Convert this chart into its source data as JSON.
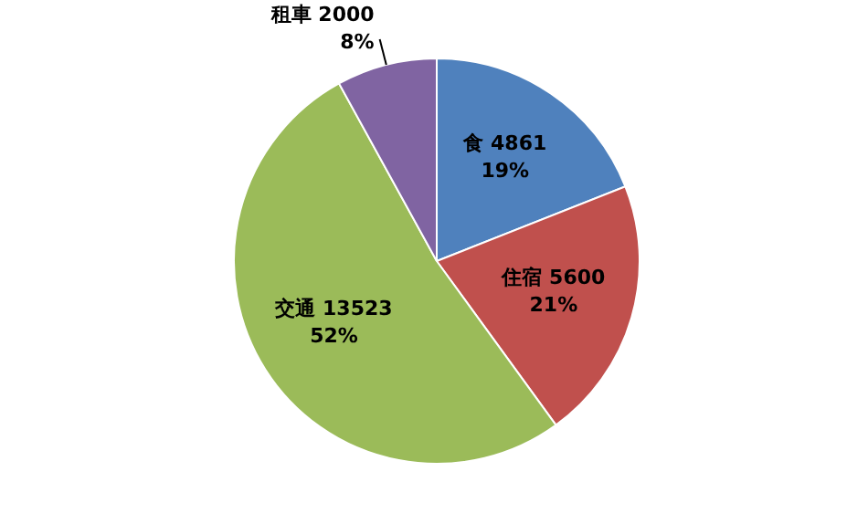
{
  "chart_data": {
    "type": "pie",
    "categories": [
      "食 4861",
      "住宿 5600",
      "交通 13523",
      "租車 2000"
    ],
    "values": [
      19,
      21,
      52,
      8
    ],
    "colors": [
      "#4f81bd",
      "#c0504d",
      "#9bbb59",
      "#8064a2"
    ],
    "value_labels": [
      "19%",
      "21%",
      "52%",
      "8%"
    ]
  }
}
